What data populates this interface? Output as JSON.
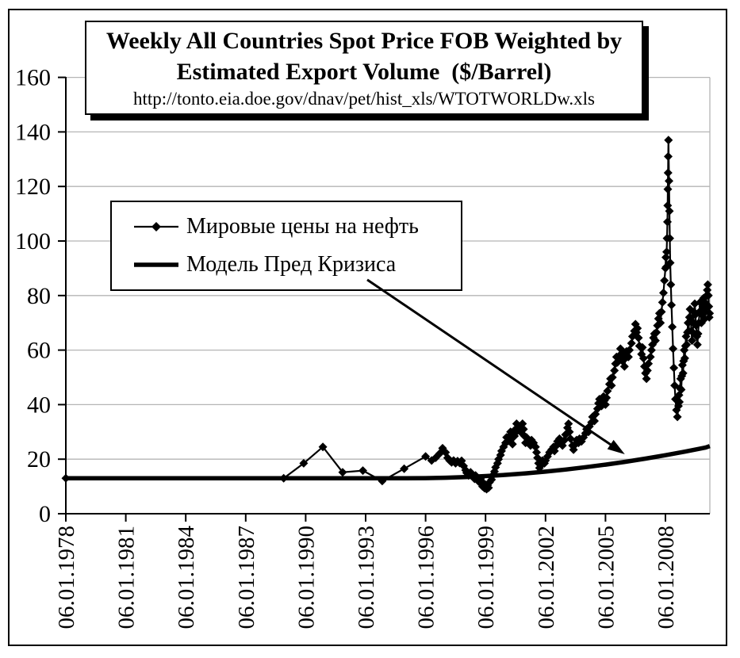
{
  "title_box": {
    "line1": "Weekly All Countries Spot Price FOB Weighted by",
    "line2": "Estimated Export Volume  ($/Barrel)",
    "url": "http://tonto.eia.doe.gov/dnav/pet/hist_xls/WTOTWORLDw.xls"
  },
  "legend": {
    "items": [
      {
        "label": "Мировые цены на нефть",
        "marker": "line-with-diamond"
      },
      {
        "label": "Модель Пред Кризиса",
        "marker": "thick-line"
      }
    ]
  },
  "colors": {
    "series": "#000000",
    "grid": "#b5b5b5",
    "axis": "#000000",
    "background": "#ffffff"
  },
  "chart_data": {
    "type": "line",
    "title": "Weekly All Countries Spot Price FOB Weighted by Estimated Export Volume ($/Barrel)",
    "xlabel": "",
    "ylabel": "",
    "xlim": [
      1978,
      2010.3
    ],
    "ylim": [
      0,
      160
    ],
    "grid": "horizontal",
    "legend_position": "upper-left-box",
    "y_ticks": [
      0,
      20,
      40,
      60,
      80,
      100,
      120,
      140,
      160
    ],
    "x_tick_years": [
      1978,
      1981,
      1984,
      1987,
      1990,
      1993,
      1996,
      1999,
      2002,
      2005,
      2008
    ],
    "x_tick_labels": [
      "06.01.1978",
      "06.01.1981",
      "06.01.1984",
      "06.01.1987",
      "06.01.1990",
      "06.01.1993",
      "06.01.1996",
      "06.01.1999",
      "06.01.2002",
      "06.01.2005",
      "06.01.2008"
    ],
    "annotation_arrow": {
      "from": [
        1993.08,
        85.8
      ],
      "to": [
        2005.97,
        21.8
      ]
    },
    "series": [
      {
        "name": "Мировые цены на нефть",
        "marker": "diamond",
        "line_width": "thin",
        "points": [
          [
            1978.0,
            13.0
          ],
          [
            1988.9,
            13.0
          ],
          [
            1989.9,
            18.5
          ],
          [
            1990.86,
            24.5
          ],
          [
            1991.85,
            15.2
          ],
          [
            1992.86,
            15.8
          ],
          [
            1993.83,
            12.0
          ],
          [
            1994.93,
            16.5
          ],
          [
            1996.0,
            21.0
          ],
          [
            1996.3,
            19.5
          ],
          [
            1996.5,
            20.5
          ],
          [
            1996.7,
            22.0
          ],
          [
            1996.85,
            24.0
          ],
          [
            1997.0,
            22.5
          ],
          [
            1997.1,
            20.5
          ],
          [
            1997.2,
            19.5
          ],
          [
            1997.3,
            18.8
          ],
          [
            1997.4,
            19.5
          ],
          [
            1997.5,
            18.5
          ],
          [
            1997.6,
            19.3
          ],
          [
            1997.7,
            18.6
          ],
          [
            1997.8,
            19.4
          ],
          [
            1997.9,
            17.5
          ],
          [
            1998.0,
            16.0
          ],
          [
            1998.05,
            15.0
          ],
          [
            1998.15,
            14.0
          ],
          [
            1998.25,
            15.2
          ],
          [
            1998.35,
            13.8
          ],
          [
            1998.45,
            12.8
          ],
          [
            1998.5,
            14.0
          ],
          [
            1998.6,
            13.0
          ],
          [
            1998.65,
            11.8
          ],
          [
            1998.75,
            12.8
          ],
          [
            1998.8,
            11.2
          ],
          [
            1998.85,
            10.0
          ],
          [
            1998.9,
            11.2
          ],
          [
            1998.95,
            9.4
          ],
          [
            1999.0,
            10.6
          ],
          [
            1999.05,
            9.0
          ],
          [
            1999.1,
            10.4
          ],
          [
            1999.15,
            9.5
          ],
          [
            1999.2,
            11.5
          ],
          [
            1999.3,
            12.5
          ],
          [
            1999.35,
            14.0
          ],
          [
            1999.45,
            15.5
          ],
          [
            1999.5,
            17.0
          ],
          [
            1999.6,
            18.5
          ],
          [
            1999.65,
            20.0
          ],
          [
            1999.75,
            21.5
          ],
          [
            1999.8,
            23.0
          ],
          [
            1999.9,
            24.5
          ],
          [
            2000.0,
            26.0
          ],
          [
            2000.05,
            28.0
          ],
          [
            2000.1,
            26.5
          ],
          [
            2000.2,
            28.5
          ],
          [
            2000.25,
            30.0
          ],
          [
            2000.3,
            27.5
          ],
          [
            2000.35,
            25.5
          ],
          [
            2000.45,
            28.5
          ],
          [
            2000.5,
            31.0
          ],
          [
            2000.55,
            33.0
          ],
          [
            2000.6,
            30.5
          ],
          [
            2000.7,
            32.0
          ],
          [
            2000.75,
            30.0
          ],
          [
            2000.8,
            31.5
          ],
          [
            2000.85,
            33.0
          ],
          [
            2000.9,
            31.0
          ],
          [
            2000.95,
            28.5
          ],
          [
            2001.0,
            26.0
          ],
          [
            2001.05,
            28.0
          ],
          [
            2001.15,
            26.5
          ],
          [
            2001.25,
            25.0
          ],
          [
            2001.3,
            27.0
          ],
          [
            2001.4,
            26.0
          ],
          [
            2001.5,
            24.5
          ],
          [
            2001.55,
            22.5
          ],
          [
            2001.6,
            20.5
          ],
          [
            2001.65,
            18.5
          ],
          [
            2001.7,
            16.8
          ],
          [
            2001.8,
            18.0
          ],
          [
            2001.85,
            19.5
          ],
          [
            2001.95,
            18.5
          ],
          [
            2002.0,
            19.5
          ],
          [
            2002.1,
            21.0
          ],
          [
            2002.2,
            22.5
          ],
          [
            2002.3,
            23.5
          ],
          [
            2002.4,
            24.5
          ],
          [
            2002.45,
            23.0
          ],
          [
            2002.55,
            25.0
          ],
          [
            2002.6,
            26.5
          ],
          [
            2002.7,
            27.5
          ],
          [
            2002.75,
            26.0
          ],
          [
            2002.85,
            25.0
          ],
          [
            2002.95,
            27.0
          ],
          [
            2003.0,
            29.0
          ],
          [
            2003.1,
            31.5
          ],
          [
            2003.15,
            33.0
          ],
          [
            2003.2,
            30.0
          ],
          [
            2003.25,
            27.5
          ],
          [
            2003.35,
            25.0
          ],
          [
            2003.4,
            23.5
          ],
          [
            2003.5,
            25.5
          ],
          [
            2003.55,
            27.0
          ],
          [
            2003.65,
            26.0
          ],
          [
            2003.7,
            27.5
          ],
          [
            2003.8,
            26.5
          ],
          [
            2003.9,
            28.0
          ],
          [
            2004.0,
            29.5
          ],
          [
            2004.05,
            31.0
          ],
          [
            2004.15,
            30.0
          ],
          [
            2004.2,
            32.0
          ],
          [
            2004.3,
            33.5
          ],
          [
            2004.35,
            35.5
          ],
          [
            2004.45,
            34.0
          ],
          [
            2004.5,
            36.5
          ],
          [
            2004.6,
            38.5
          ],
          [
            2004.65,
            40.5
          ],
          [
            2004.7,
            42.0
          ],
          [
            2004.8,
            39.5
          ],
          [
            2004.85,
            41.0
          ],
          [
            2004.9,
            43.0
          ],
          [
            2004.95,
            41.5
          ],
          [
            2005.0,
            40.0
          ],
          [
            2005.05,
            42.5
          ],
          [
            2005.1,
            45.0
          ],
          [
            2005.2,
            47.5
          ],
          [
            2005.25,
            49.5
          ],
          [
            2005.3,
            47.0
          ],
          [
            2005.35,
            50.0
          ],
          [
            2005.45,
            52.5
          ],
          [
            2005.5,
            55.0
          ],
          [
            2005.55,
            57.5
          ],
          [
            2005.6,
            55.5
          ],
          [
            2005.7,
            58.0
          ],
          [
            2005.75,
            60.5
          ],
          [
            2005.8,
            58.5
          ],
          [
            2005.85,
            56.0
          ],
          [
            2005.95,
            54.0
          ],
          [
            2006.0,
            57.0
          ],
          [
            2006.05,
            59.5
          ],
          [
            2006.15,
            57.5
          ],
          [
            2006.2,
            60.0
          ],
          [
            2006.3,
            62.5
          ],
          [
            2006.35,
            65.0
          ],
          [
            2006.45,
            67.0
          ],
          [
            2006.5,
            69.5
          ],
          [
            2006.55,
            66.5
          ],
          [
            2006.6,
            68.0
          ],
          [
            2006.65,
            64.5
          ],
          [
            2006.7,
            61.5
          ],
          [
            2006.8,
            58.5
          ],
          [
            2006.85,
            61.0
          ],
          [
            2006.9,
            57.0
          ],
          [
            2006.95,
            54.0
          ],
          [
            2007.0,
            51.5
          ],
          [
            2007.05,
            49.5
          ],
          [
            2007.1,
            52.5
          ],
          [
            2007.15,
            55.0
          ],
          [
            2007.25,
            57.5
          ],
          [
            2007.3,
            60.0
          ],
          [
            2007.35,
            62.0
          ],
          [
            2007.4,
            64.5
          ],
          [
            2007.45,
            66.0
          ],
          [
            2007.5,
            63.5
          ],
          [
            2007.55,
            66.5
          ],
          [
            2007.6,
            69.0
          ],
          [
            2007.65,
            71.5
          ],
          [
            2007.7,
            73.5
          ],
          [
            2007.75,
            70.0
          ],
          [
            2007.8,
            74.0
          ],
          [
            2007.85,
            77.5
          ],
          [
            2007.9,
            81.0
          ],
          [
            2007.95,
            85.5
          ],
          [
            2008.0,
            90.0
          ],
          [
            2008.02,
            94.0
          ],
          [
            2008.04,
            90.5
          ],
          [
            2008.06,
            96.0
          ],
          [
            2008.08,
            101.0
          ],
          [
            2008.1,
            107.0
          ],
          [
            2008.11,
            113.0
          ],
          [
            2008.12,
            119.0
          ],
          [
            2008.13,
            125.0
          ],
          [
            2008.14,
            131.0
          ],
          [
            2008.15,
            137.0
          ],
          [
            2008.18,
            122.0
          ],
          [
            2008.2,
            111.0
          ],
          [
            2008.22,
            101.0
          ],
          [
            2008.24,
            92.0
          ],
          [
            2008.27,
            84.0
          ],
          [
            2008.3,
            76.5
          ],
          [
            2008.34,
            68.5
          ],
          [
            2008.38,
            60.5
          ],
          [
            2008.42,
            53.5
          ],
          [
            2008.46,
            47.0
          ],
          [
            2008.5,
            42.0
          ],
          [
            2008.55,
            38.0
          ],
          [
            2008.6,
            35.5
          ],
          [
            2008.65,
            39.5
          ],
          [
            2008.68,
            43.5
          ],
          [
            2008.7,
            41.0
          ],
          [
            2008.73,
            46.0
          ],
          [
            2008.76,
            49.5
          ],
          [
            2008.79,
            45.5
          ],
          [
            2008.82,
            50.5
          ],
          [
            2008.85,
            54.5
          ],
          [
            2008.88,
            51.5
          ],
          [
            2008.91,
            56.0
          ],
          [
            2008.94,
            60.0
          ],
          [
            2008.97,
            57.0
          ],
          [
            2009.0,
            61.5
          ],
          [
            2009.03,
            65.0
          ],
          [
            2009.06,
            62.0
          ],
          [
            2009.1,
            66.5
          ],
          [
            2009.13,
            70.0
          ],
          [
            2009.16,
            67.0
          ],
          [
            2009.2,
            72.0
          ],
          [
            2009.23,
            75.0
          ],
          [
            2009.27,
            71.0
          ],
          [
            2009.3,
            67.0
          ],
          [
            2009.33,
            63.5
          ],
          [
            2009.37,
            66.5
          ],
          [
            2009.4,
            70.0
          ],
          [
            2009.43,
            74.0
          ],
          [
            2009.47,
            77.0
          ],
          [
            2009.5,
            73.0
          ],
          [
            2009.53,
            69.0
          ],
          [
            2009.57,
            65.0
          ],
          [
            2009.6,
            62.0
          ],
          [
            2009.63,
            66.0
          ],
          [
            2009.67,
            70.0
          ],
          [
            2009.7,
            74.0
          ],
          [
            2009.73,
            77.5
          ],
          [
            2009.77,
            73.5
          ],
          [
            2009.8,
            70.0
          ],
          [
            2009.83,
            73.0
          ],
          [
            2009.87,
            76.0
          ],
          [
            2009.9,
            79.0
          ],
          [
            2009.93,
            75.0
          ],
          [
            2009.97,
            71.5
          ],
          [
            2010.0,
            74.0
          ],
          [
            2010.03,
            77.0
          ],
          [
            2010.06,
            80.0
          ],
          [
            2010.09,
            82.0
          ],
          [
            2010.12,
            84.0
          ],
          [
            2010.15,
            80.0
          ],
          [
            2010.17,
            76.0
          ],
          [
            2010.19,
            72.0
          ],
          [
            2010.21,
            73.5
          ]
        ]
      },
      {
        "name": "Модель Пред Кризиса",
        "marker": "none",
        "line_width": "thick",
        "points": [
          [
            1978,
            13
          ],
          [
            1995,
            13
          ],
          [
            1996,
            13.05
          ],
          [
            1997,
            13.2
          ],
          [
            1998,
            13.45
          ],
          [
            1999,
            13.8
          ],
          [
            2000,
            14.25
          ],
          [
            2001,
            14.8
          ],
          [
            2002,
            15.45
          ],
          [
            2003,
            16.2
          ],
          [
            2004,
            17.05
          ],
          [
            2005,
            18.0
          ],
          [
            2006,
            19.05
          ],
          [
            2007,
            20.2
          ],
          [
            2008,
            21.45
          ],
          [
            2009,
            22.8
          ],
          [
            2010,
            24.25
          ],
          [
            2010.22,
            24.8
          ]
        ]
      }
    ]
  }
}
